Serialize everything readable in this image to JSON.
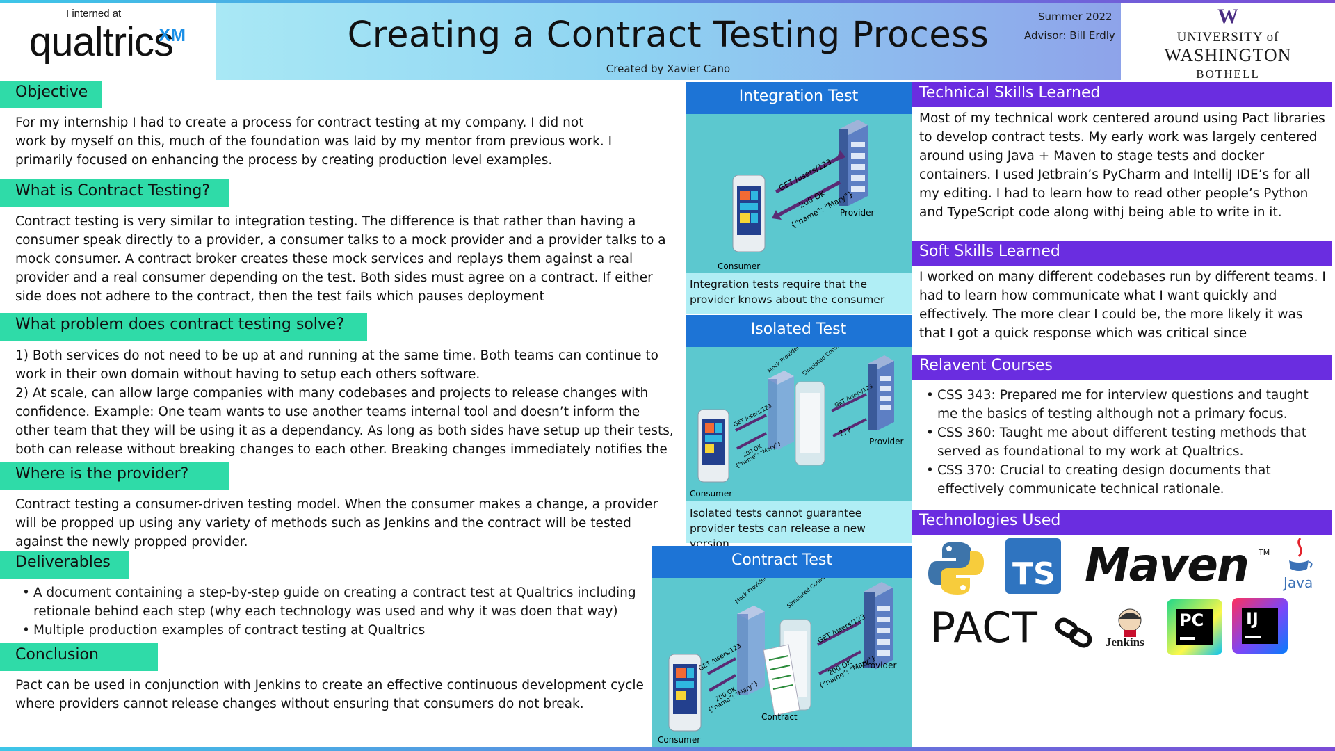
{
  "header": {
    "interned": "I interned at",
    "qualtrics_word": "qualtrics",
    "qualtrics_xm": "XM",
    "title": "Creating a Contract Testing Process",
    "subtitle": "Created by Xavier Cano",
    "season": "Summer 2022",
    "advisor": "Advisor: Bill Erdly",
    "uw_w": "W",
    "uw_line1": "UNIVERSITY of",
    "uw_line2": "WASHINGTON",
    "uw_line3": "BOTHELL"
  },
  "left": {
    "objective": {
      "title": "Objective",
      "text": "For my internship I had to create a process for contract testing at my company. I did not work by myself on this, much of the foundation was laid by my mentor from previous work. I primarily focused on enhancing the process by creating production level examples."
    },
    "what": {
      "title": "What is Contract Testing?",
      "text": "Contract testing is very similar to integration testing. The difference is that rather than having a consumer speak directly to a provider, a consumer talks to a mock provider and a provider talks to a mock consumer. A contract broker creates these mock services and replays them against a real provider and a real consumer depending on the test. Both sides must agree on a contract. If either side does not adhere to the contract, then the test fails which pauses deployment"
    },
    "problem": {
      "title": "What problem does contract testing solve?",
      "text1": "1) Both services do not need to be up at and running at the same time. Both teams can continue to work in their own domain without having to setup each others software.",
      "text2": "2) At scale, can allow large companies with many codebases and projects to release changes with confidence. Example: One team wants to use another teams internal tool and doesn’t inform the other team that they will be using it as a dependancy. As long as both sides have setup up their tests, both can release without breaking changes to each other. Breaking changes immediately notifies the other."
    },
    "provider": {
      "title": "Where is the provider?",
      "text": "Contract testing a consumer-driven testing model. When the consumer makes a change, a provider will be propped up using any variety of methods such as Jenkins and the contract will be tested against the newly propped provider."
    },
    "deliverables": {
      "title": "Deliverables",
      "items": [
        "A document containing a step-by-step guide on creating a contract test at Qualtrics including retionale behind each step (why each technology was used and why it was doen that way)",
        "Multiple production examples of contract testing at Qualtrics"
      ]
    },
    "conclusion": {
      "title": "Conclusion",
      "text": "Pact can be used in conjunction with Jenkins to create an effective continuous development cycle where providers cannot release changes without ensuring that consumers do not break."
    }
  },
  "middle": {
    "integration": {
      "title": "Integration Test",
      "caption": "Integration tests require that the provider knows about the consumer",
      "request": "GET /users/123",
      "response1": "200 OK",
      "response2": "{\"name\": \"Mary\"}",
      "provider": "Provider",
      "consumer": "Consumer"
    },
    "isolated": {
      "title": "Isolated Test",
      "caption": "Isolated tests cannot guarantee provider tests can release a new version.",
      "request": "GET /users/123",
      "response1": "200 OK",
      "response2": "{\"name\": \"Mary\"}",
      "mock": "Mock Provider",
      "simulated": "Simulated Consumer",
      "unknown": "???",
      "provider": "Provider",
      "consumer": "Consumer"
    },
    "contract": {
      "title": "Contract Test",
      "request": "GET /users/123",
      "response1": "200 OK",
      "response2": "{\"name\": \"Mary\"}",
      "mock": "Mock Provider",
      "simulated": "Simulated Consumer",
      "provider": "Provider",
      "consumer": "Consumer",
      "contract_label": "Contract"
    }
  },
  "right": {
    "technical": {
      "title": "Technical Skills Learned",
      "text": "Most of my technical work centered around using Pact libraries to develop contract tests. My early work was largely centered around using Java + Maven to stage tests and docker containers. I used Jetbrain’s PyCharm and IntelliJ IDE’s for all my editing. I had to learn how to read other people’s Python and TypeScript code along withj being able to write in it."
    },
    "soft": {
      "title": "Soft Skills Learned",
      "text": "I worked on many different codebases run by different teams. I had to learn how communicate what I want quickly and effectively. The more clear I could be, the more likely it was that I got a quick response which was critical since"
    },
    "courses": {
      "title": "Relavent Courses",
      "items": [
        "CSS 343: Prepared me for interview questions and taught me the basics of testing although not a primary focus.",
        "CSS 360: Taught me about different testing methods that served as foundational to my work at Qualtrics.",
        "CSS 370: Crucial to creating design documents that effectively communicate technical rationale."
      ]
    },
    "tech": {
      "title": "Technologies Used",
      "ts": "TS",
      "maven": "Maven",
      "tm": "TM",
      "java": "Java",
      "pact": "PACT",
      "jenkins": "Jenkins",
      "pc": "PC",
      "ij": "IJ"
    }
  },
  "colors": {
    "section_green": "#2fdba8",
    "right_purple": "#6a2de0",
    "diagram_blue": "#1d74d6",
    "diagram_teal": "#5cc8cf"
  }
}
